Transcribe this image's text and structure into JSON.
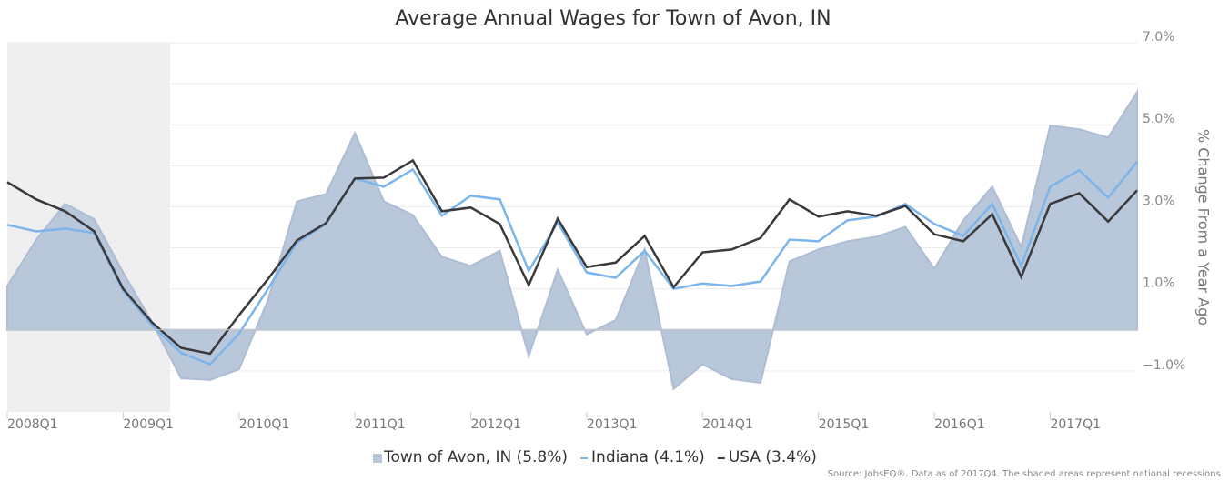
{
  "chart_data": {
    "type": "area-line",
    "title": "Average Annual Wages for Town of Avon, IN",
    "y_label": "% Change From a Year Ago",
    "source": "Source: JobsEQ®. Data as of 2017Q4. The shaded areas represent national recessions.",
    "categories": [
      "2008Q1",
      null,
      null,
      null,
      "2009Q1",
      null,
      null,
      null,
      "2010Q1",
      null,
      null,
      null,
      "2011Q1",
      null,
      null,
      null,
      "2012Q1",
      null,
      null,
      null,
      "2013Q1",
      null,
      null,
      null,
      "2014Q1",
      null,
      null,
      null,
      "2015Q1",
      null,
      null,
      null,
      "2016Q1",
      null,
      null,
      null,
      "2017Q1",
      null,
      null,
      null
    ],
    "series": [
      {
        "name": "Town of Avon, IN (5.8%)",
        "kind": "area",
        "color": "#b9c7da",
        "values": [
          1.07,
          2.2,
          3.07,
          2.7,
          1.4,
          0.18,
          -1.18,
          -1.22,
          -0.96,
          0.73,
          3.13,
          3.31,
          4.8,
          3.13,
          2.8,
          1.78,
          1.56,
          1.93,
          -0.64,
          1.47,
          -0.11,
          0.24,
          1.96,
          -1.44,
          -0.84,
          -1.2,
          -1.29,
          1.67,
          1.96,
          2.16,
          2.27,
          2.51,
          1.49,
          2.67,
          3.49,
          2.02,
          4.98,
          4.89,
          4.69,
          5.8
        ]
      },
      {
        "name": "Indiana (4.1%)",
        "kind": "line",
        "color": "#7cb5ec",
        "values": [
          2.56,
          2.4,
          2.47,
          2.36,
          0.96,
          0.11,
          -0.56,
          -0.84,
          -0.09,
          1.0,
          2.13,
          2.58,
          3.69,
          3.49,
          3.91,
          2.78,
          3.27,
          3.18,
          1.44,
          2.62,
          1.4,
          1.27,
          1.93,
          1.0,
          1.13,
          1.07,
          1.18,
          2.2,
          2.16,
          2.67,
          2.76,
          3.07,
          2.58,
          2.29,
          3.07,
          1.56,
          3.49,
          3.89,
          3.22,
          4.1
        ]
      },
      {
        "name": "USA (3.4%)",
        "kind": "line",
        "color": "#3a3a3d",
        "values": [
          3.6,
          3.18,
          2.89,
          2.4,
          1.0,
          0.18,
          -0.44,
          -0.58,
          0.36,
          1.24,
          2.18,
          2.6,
          3.69,
          3.71,
          4.13,
          2.89,
          2.98,
          2.58,
          1.09,
          2.71,
          1.53,
          1.64,
          2.29,
          1.04,
          1.89,
          1.96,
          2.24,
          3.18,
          2.76,
          2.89,
          2.78,
          3.02,
          2.33,
          2.16,
          2.82,
          1.29,
          3.07,
          3.33,
          2.64,
          3.4
        ]
      }
    ],
    "ylim": [
      -2,
      7
    ],
    "yticks": [
      {
        "value": 7,
        "label": "7.0%"
      },
      {
        "value": 5,
        "label": "5.0%"
      },
      {
        "value": 3,
        "label": "3.0%"
      },
      {
        "value": 1,
        "label": "1.0%"
      },
      {
        "value": -1,
        "label": "−1.0%"
      }
    ],
    "minor_yticks": [
      6,
      4,
      2,
      0
    ],
    "grid": true
  }
}
